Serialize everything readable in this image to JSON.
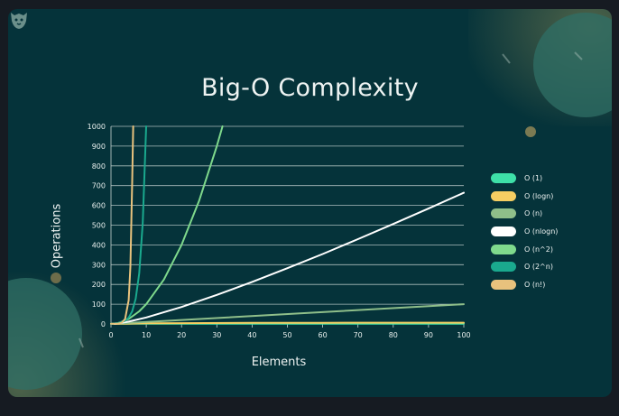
{
  "chart_data": {
    "type": "line",
    "title": "Big-O Complexity",
    "xlabel": "Elements",
    "ylabel": "Operations",
    "xlim": [
      0,
      100
    ],
    "ylim": [
      0,
      1000
    ],
    "xticks": [
      0,
      10,
      20,
      30,
      40,
      50,
      60,
      70,
      80,
      90,
      100
    ],
    "yticks": [
      0,
      100,
      200,
      300,
      400,
      500,
      600,
      700,
      800,
      900,
      1000
    ],
    "grid": "horizontal",
    "legend_position": "right",
    "series": [
      {
        "name": "O (1)",
        "color": "#3ee0a8",
        "x": [
          0,
          100
        ],
        "y": [
          1,
          1
        ]
      },
      {
        "name": "O (logn)",
        "color": "#f5ce62",
        "x": [
          1,
          10,
          20,
          40,
          60,
          80,
          100
        ],
        "y": [
          0,
          3.3,
          4.3,
          5.3,
          5.9,
          6.3,
          6.6
        ]
      },
      {
        "name": "O (n)",
        "color": "#8fbf8a",
        "x": [
          0,
          100
        ],
        "y": [
          0,
          100
        ]
      },
      {
        "name": "O (nlogn)",
        "color": "#ffffff",
        "x": [
          1,
          5,
          10,
          20,
          30,
          40,
          50,
          60,
          70,
          80,
          90,
          100
        ],
        "y": [
          0,
          12,
          33,
          86,
          147,
          213,
          282,
          354,
          429,
          506,
          584,
          664
        ]
      },
      {
        "name": "O (n^2)",
        "color": "#7fd98c",
        "x": [
          0,
          2,
          5,
          8,
          10,
          15,
          20,
          25,
          30,
          31.6
        ],
        "y": [
          0,
          4,
          25,
          64,
          100,
          225,
          400,
          625,
          900,
          1000
        ]
      },
      {
        "name": "O (2^n)",
        "color": "#1aa98e",
        "x": [
          0,
          2,
          4,
          5,
          6,
          7,
          8,
          9,
          9.97
        ],
        "y": [
          1,
          4,
          16,
          32,
          64,
          128,
          256,
          512,
          1000
        ]
      },
      {
        "name": "O (n!)",
        "color": "#e8c27d",
        "x": [
          0,
          1,
          2,
          3,
          4,
          5,
          5.5,
          6,
          6.3
        ],
        "y": [
          1,
          1,
          2,
          6,
          24,
          120,
          290,
          720,
          1000
        ]
      }
    ]
  }
}
